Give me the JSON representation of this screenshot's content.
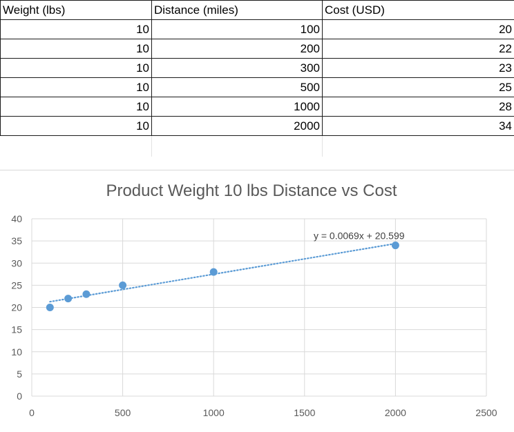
{
  "table": {
    "headers": [
      "Weight (lbs)",
      "Distance (miles)",
      "Cost (USD)"
    ],
    "rows": [
      [
        "10",
        "100",
        "20"
      ],
      [
        "10",
        "200",
        "22"
      ],
      [
        "10",
        "300",
        "23"
      ],
      [
        "10",
        "500",
        "25"
      ],
      [
        "10",
        "1000",
        "28"
      ],
      [
        "10",
        "2000",
        "34"
      ]
    ]
  },
  "chart_data": {
    "type": "scatter",
    "title": "Product Weight 10 lbs Distance vs Cost",
    "xlabel": "",
    "ylabel": "",
    "xlim": [
      0,
      2500
    ],
    "ylim": [
      0,
      40
    ],
    "x_ticks": [
      0,
      500,
      1000,
      1500,
      2000,
      2500
    ],
    "y_ticks": [
      0,
      5,
      10,
      15,
      20,
      25,
      30,
      35,
      40
    ],
    "grid": true,
    "legend": "none",
    "series": [
      {
        "x": [
          100,
          200,
          300,
          500,
          1000,
          2000
        ],
        "y": [
          20,
          22,
          23,
          25,
          28,
          34
        ],
        "color": "#5b9bd5"
      }
    ],
    "trendline": {
      "type": "linear",
      "slope": 0.0069,
      "intercept": 20.599,
      "label": "y = 0.0069x + 20.599",
      "color": "#5b9bd5"
    }
  }
}
